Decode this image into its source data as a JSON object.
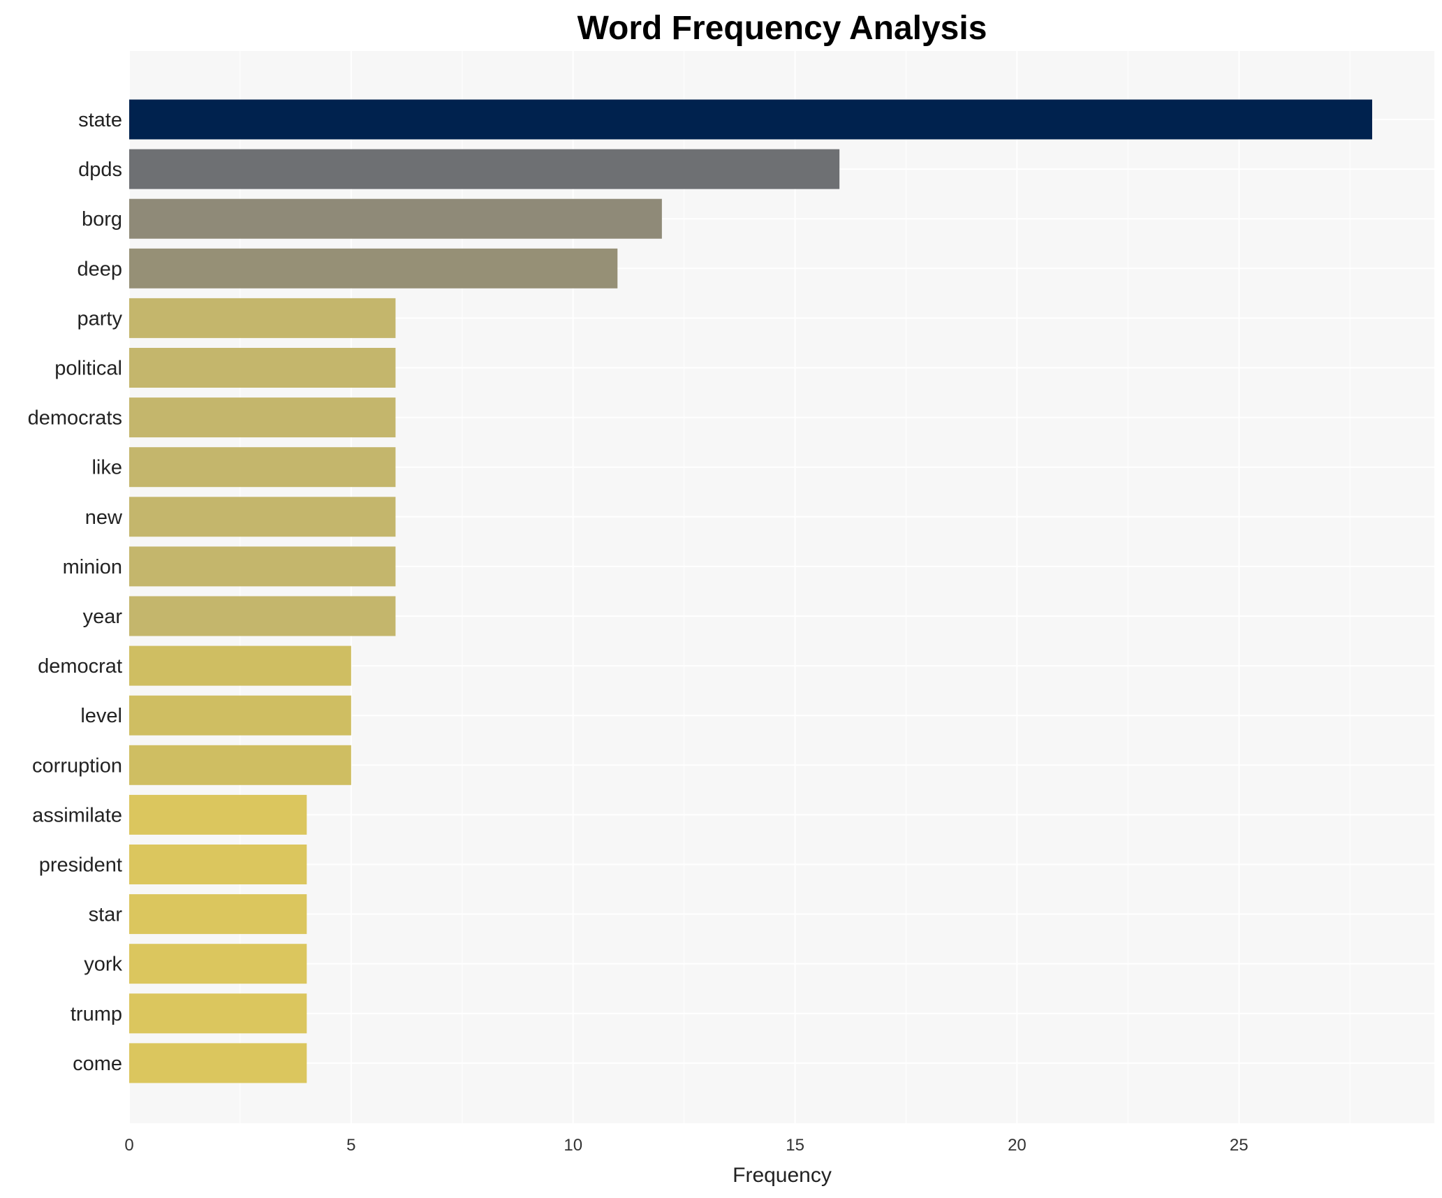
{
  "chart_data": {
    "type": "bar",
    "orientation": "horizontal",
    "title": "Word Frequency Analysis",
    "xlabel": "Frequency",
    "ylabel": "",
    "xlim": [
      0,
      29.4
    ],
    "xticks": [
      0,
      5,
      10,
      15,
      20,
      25
    ],
    "grid": true,
    "categories": [
      "state",
      "dpds",
      "borg",
      "deep",
      "party",
      "political",
      "democrats",
      "like",
      "new",
      "minion",
      "year",
      "democrat",
      "level",
      "corruption",
      "assimilate",
      "president",
      "star",
      "york",
      "trump",
      "come"
    ],
    "values": [
      28,
      16,
      12,
      11,
      6,
      6,
      6,
      6,
      6,
      6,
      6,
      5,
      5,
      5,
      4,
      4,
      4,
      4,
      4,
      4
    ],
    "colors": [
      "#00224e",
      "#6e7073",
      "#8f8a78",
      "#969076",
      "#c4b66c",
      "#c4b66c",
      "#c4b66c",
      "#c4b66c",
      "#c4b66c",
      "#c4b66c",
      "#c4b66c",
      "#cfbe62",
      "#cfbe62",
      "#cfbe62",
      "#dbc65e",
      "#dbc65e",
      "#dbc65e",
      "#dbc65e",
      "#dbc65e",
      "#dbc65e"
    ],
    "background": "#f7f7f7"
  }
}
